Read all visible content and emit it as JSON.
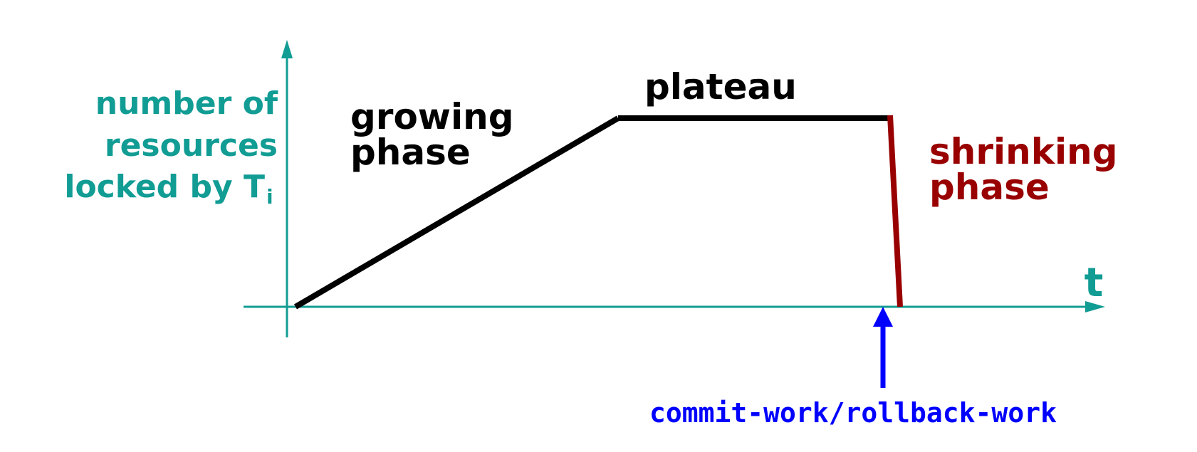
{
  "colors": {
    "axis": "#119C94",
    "curve": "#000000",
    "shrink": "#990000",
    "commit": "#0000FF",
    "background": "#FFFFFF"
  },
  "y_axis_label": {
    "line1": "number of",
    "line2": "resources",
    "line3_main": "locked by T",
    "line3_sub": "i"
  },
  "x_axis_label": "t",
  "phases": {
    "growing": {
      "line1": "growing",
      "line2": "phase"
    },
    "plateau": "plateau",
    "shrinking": {
      "line1": "shrinking",
      "line2": "phase"
    }
  },
  "commit_label": "commit-work/rollback-work"
}
